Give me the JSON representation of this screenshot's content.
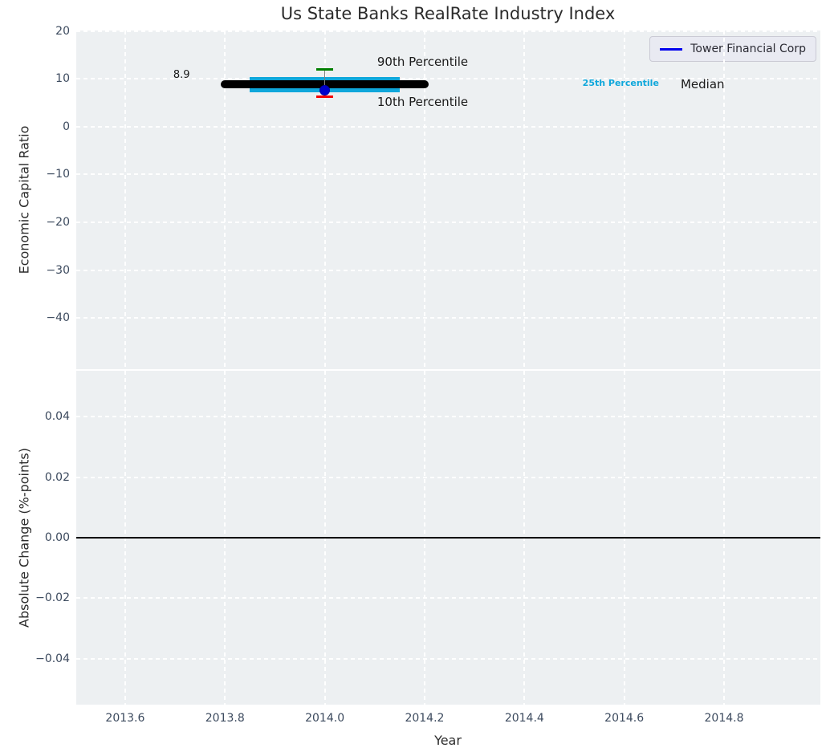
{
  "title": "Us State Banks RealRate Industry Index",
  "legend": {
    "label": "Tower Financial Corp"
  },
  "colors": {
    "plot_bg": "#edf0f2",
    "grid": "#ffffff",
    "cyan": "#0fa7db",
    "green": "#007f00",
    "red": "#f50000",
    "blue_line": "#0000ee",
    "blue_dot": "#0000cc",
    "errorbar_gray": "#808080",
    "median_black": "#000000",
    "tick_text": "#3c4a5e",
    "label_text": "#2b2b2b"
  },
  "chart_data": {
    "type": "line",
    "title": "Us State Banks RealRate Industry Index",
    "x": {
      "label": "Year",
      "lim": [
        2013.502,
        2014.993
      ],
      "ticks": [
        {
          "v": 2013.6,
          "label": "2013.6"
        },
        {
          "v": 2013.8,
          "label": "2013.8"
        },
        {
          "v": 2014.0,
          "label": "2014.0"
        },
        {
          "v": 2014.2,
          "label": "2014.2"
        },
        {
          "v": 2014.4,
          "label": "2014.4"
        },
        {
          "v": 2014.6,
          "label": "2014.6"
        },
        {
          "v": 2014.8,
          "label": "2014.8"
        }
      ]
    },
    "panels": [
      {
        "name": "economic-capital-ratio",
        "ylabel": "Economic Capital Ratio",
        "ylim": [
          -50.7,
          20.1
        ],
        "yticks": [
          {
            "v": 20,
            "label": "20"
          },
          {
            "v": 10,
            "label": "10"
          },
          {
            "v": 0,
            "label": "0"
          },
          {
            "v": -10,
            "label": "−10"
          },
          {
            "v": -20,
            "label": "−20"
          },
          {
            "v": -30,
            "label": "−30"
          },
          {
            "v": -40,
            "label": "−40"
          }
        ],
        "marks": {
          "median": {
            "label": "Median",
            "value": 8.9,
            "x_start": 2013.8,
            "x_end": 2014.2
          },
          "percentile_band": {
            "label": "25th Percentile",
            "p25": 7.1,
            "p75": 10.4,
            "x_start": 2013.85,
            "x_end": 2014.15
          },
          "p90": {
            "label": "90th Percentile",
            "value": 12.0,
            "x": 2014.0
          },
          "p10": {
            "label": "10th Percentile",
            "value": 6.3,
            "x": 2014.0
          },
          "company_point": {
            "name": "Tower Financial Corp",
            "value": 7.6,
            "x": 2014.0
          }
        },
        "annotations": [
          {
            "text": "8.9",
            "x": 2013.713,
            "y": 10.4,
            "anchor": "middle",
            "cls": "ann-small",
            "color": "#1a1a1a"
          },
          {
            "text": "90th Percentile",
            "x": 2014.105,
            "y": 13.4,
            "anchor": "start",
            "cls": "ann-large",
            "color": "#1a1a1a"
          },
          {
            "text": "10th Percentile",
            "x": 2014.105,
            "y": 5.0,
            "anchor": "start",
            "cls": "ann-large",
            "color": "#1a1a1a"
          },
          {
            "text": "25th Percentile",
            "x": 2014.593,
            "y": 8.6,
            "anchor": "middle",
            "cls": "ann-cyan",
            "color": "#0fa7db"
          },
          {
            "text": "Median",
            "x": 2014.757,
            "y": 8.7,
            "anchor": "middle",
            "cls": "ann-large",
            "color": "#1a1a1a"
          }
        ]
      },
      {
        "name": "absolute-change",
        "ylabel": "Absolute Change (%-points)",
        "xlabel": "Year",
        "ylim": [
          -0.0551,
          0.0551
        ],
        "yticks": [
          {
            "v": 0.04,
            "label": "0.04"
          },
          {
            "v": 0.02,
            "label": "0.02"
          },
          {
            "v": 0.0,
            "label": "0.00"
          },
          {
            "v": -0.02,
            "label": "−0.02"
          },
          {
            "v": -0.04,
            "label": "−0.04"
          }
        ],
        "zero_line": 0.0
      }
    ]
  }
}
